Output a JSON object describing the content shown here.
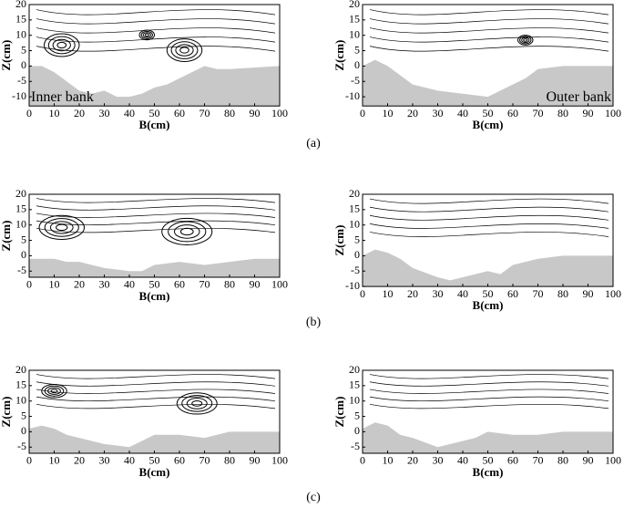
{
  "chart_data": [
    {
      "type": "area",
      "color": "#c8c8c8",
      "x": [
        0,
        5,
        10,
        15,
        20,
        25,
        30,
        35,
        40,
        45,
        50,
        55,
        60,
        65,
        70,
        75,
        80,
        100
      ],
      "values": [
        0,
        0,
        -2,
        -5,
        -8,
        -9,
        -8,
        -10,
        -10,
        -9,
        -7,
        -6,
        -4,
        -2,
        0,
        -1,
        -1,
        0
      ],
      "xlim": [
        0,
        100
      ],
      "ylim": [
        -13,
        20
      ],
      "xticks": [
        0,
        10,
        20,
        30,
        40,
        50,
        60,
        70,
        80,
        90,
        100
      ],
      "yticks": [
        20,
        15,
        10,
        5,
        0,
        -5,
        -10
      ],
      "xlabel": "B(cm)",
      "ylabel": "Z(cm)",
      "annotation": "Inner bank"
    },
    {
      "type": "area",
      "color": "#c8c8c8",
      "x": [
        0,
        5,
        10,
        15,
        20,
        30,
        40,
        50,
        55,
        60,
        65,
        70,
        80,
        100
      ],
      "values": [
        0,
        2,
        0,
        -3,
        -6,
        -8,
        -9,
        -10,
        -8,
        -6,
        -4,
        -1,
        0,
        0
      ],
      "xlim": [
        0,
        100
      ],
      "ylim": [
        -13,
        20
      ],
      "xticks": [
        0,
        10,
        20,
        30,
        40,
        50,
        60,
        70,
        80,
        90,
        100
      ],
      "yticks": [
        20,
        15,
        10,
        5,
        0,
        -5,
        -10
      ],
      "xlabel": "B(cm)",
      "ylabel": "Z(cm)",
      "annotation": "Outer bank"
    },
    {
      "type": "area",
      "color": "#c8c8c8",
      "x": [
        0,
        5,
        10,
        15,
        20,
        30,
        40,
        45,
        50,
        60,
        70,
        80,
        90,
        100
      ],
      "values": [
        -1,
        -1,
        -1,
        -2,
        -2,
        -4,
        -5,
        -5,
        -3,
        -2,
        -3,
        -2,
        -1,
        -1
      ],
      "xlim": [
        0,
        100
      ],
      "ylim": [
        -7,
        20
      ],
      "xticks": [
        0,
        10,
        20,
        30,
        40,
        50,
        60,
        70,
        80,
        90,
        100
      ],
      "yticks": [
        20,
        15,
        10,
        5,
        0,
        -5
      ],
      "xlabel": "B(cm)",
      "ylabel": "Z(cm)"
    },
    {
      "type": "area",
      "color": "#c8c8c8",
      "x": [
        0,
        5,
        10,
        15,
        20,
        30,
        35,
        40,
        50,
        55,
        60,
        70,
        80,
        100
      ],
      "values": [
        0,
        2,
        1,
        -1,
        -4,
        -7,
        -8,
        -7,
        -5,
        -6,
        -3,
        -1,
        0,
        0
      ],
      "xlim": [
        0,
        100
      ],
      "ylim": [
        -10,
        20
      ],
      "xticks": [
        0,
        10,
        20,
        30,
        40,
        50,
        60,
        70,
        80,
        90,
        100
      ],
      "yticks": [
        20,
        15,
        10,
        5,
        0,
        -5,
        -10
      ],
      "xlabel": "B(cm)",
      "ylabel": "Z(cm)"
    },
    {
      "type": "area",
      "color": "#c8c8c8",
      "x": [
        0,
        5,
        10,
        15,
        20,
        30,
        40,
        45,
        50,
        60,
        70,
        80,
        90,
        100
      ],
      "values": [
        1,
        2,
        1,
        -1,
        -2,
        -4,
        -5,
        -3,
        -1,
        -1,
        -2,
        0,
        0,
        0
      ],
      "xlim": [
        0,
        100
      ],
      "ylim": [
        -7,
        20
      ],
      "xticks": [
        0,
        10,
        20,
        30,
        40,
        50,
        60,
        70,
        80,
        90,
        100
      ],
      "yticks": [
        20,
        15,
        10,
        5,
        0,
        -5
      ],
      "xlabel": "B(cm)",
      "ylabel": "Z(cm)"
    },
    {
      "type": "area",
      "color": "#c8c8c8",
      "x": [
        0,
        5,
        10,
        15,
        20,
        30,
        40,
        45,
        50,
        60,
        70,
        80,
        100
      ],
      "values": [
        1,
        3,
        2,
        -1,
        -2,
        -5,
        -3,
        -2,
        0,
        -1,
        -1,
        0,
        0
      ],
      "xlim": [
        0,
        100
      ],
      "ylim": [
        -7,
        20
      ],
      "xticks": [
        0,
        10,
        20,
        30,
        40,
        50,
        60,
        70,
        80,
        90,
        100
      ],
      "yticks": [
        20,
        15,
        10,
        5,
        0,
        -5
      ],
      "xlabel": "B(cm)",
      "ylabel": "Z(cm)"
    }
  ],
  "captions": [
    "(a)",
    "(b)",
    "(c)"
  ]
}
